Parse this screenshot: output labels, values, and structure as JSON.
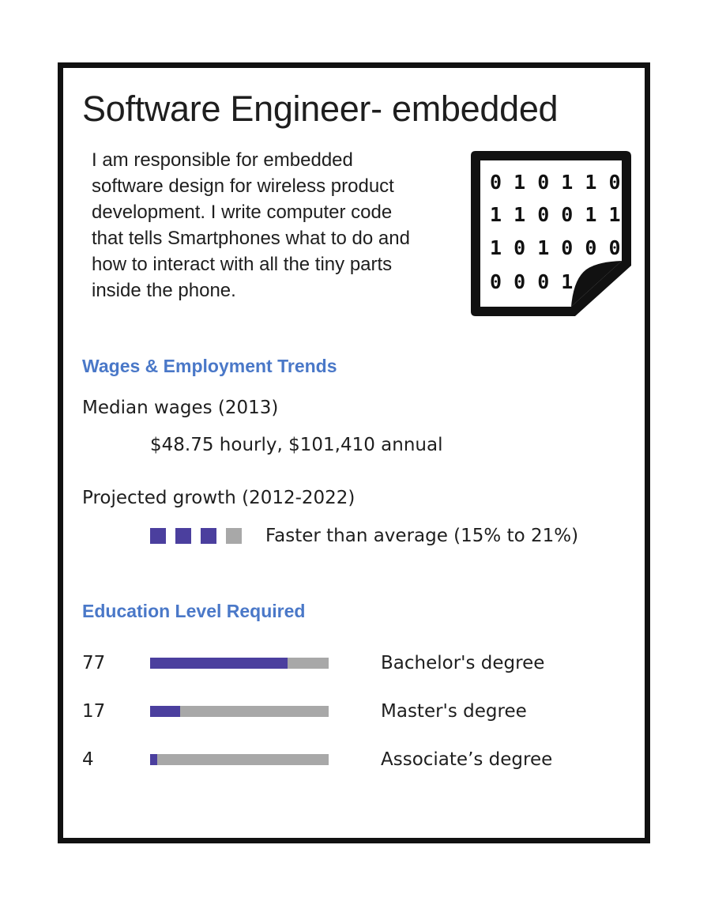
{
  "header": {
    "title": "Software Engineer- embedded"
  },
  "description": {
    "lines": [
      "I am responsible for embedded",
      "software design for wireless product",
      "development.  I write computer code",
      "that tells Smartphones what to do and",
      "how to interact with all the tiny parts",
      "inside the phone."
    ]
  },
  "icon": {
    "name": "binary-code-document-icon",
    "lines": [
      "0 1 0 1 1 0",
      "1 1 0 0 1 1",
      "1 0 1 0 0 0",
      "0 0 0 1"
    ]
  },
  "wages": {
    "heading": "Wages &  Employment Trends",
    "median_label": "Median wages (2013)",
    "median_value": "$48.75 hourly, $101,410 annual",
    "growth_label": "Projected growth (2012-2022)",
    "growth_value": "Faster than average (15% to 21%)",
    "growth_rating": {
      "filled": 3,
      "total": 4
    }
  },
  "education": {
    "heading": "Education Level Required",
    "rows": [
      {
        "percent": "77",
        "value": 77,
        "label": "Bachelor's degree"
      },
      {
        "percent": "17",
        "value": 17,
        "label": "Master's degree"
      },
      {
        "percent": "4",
        "value": 4,
        "label": "Associate’s degree"
      }
    ]
  },
  "colors": {
    "accent_heading": "#4a78c8",
    "bar_fill": "#4b3f9e",
    "bar_track": "#a8a8a8",
    "border": "#111111"
  }
}
